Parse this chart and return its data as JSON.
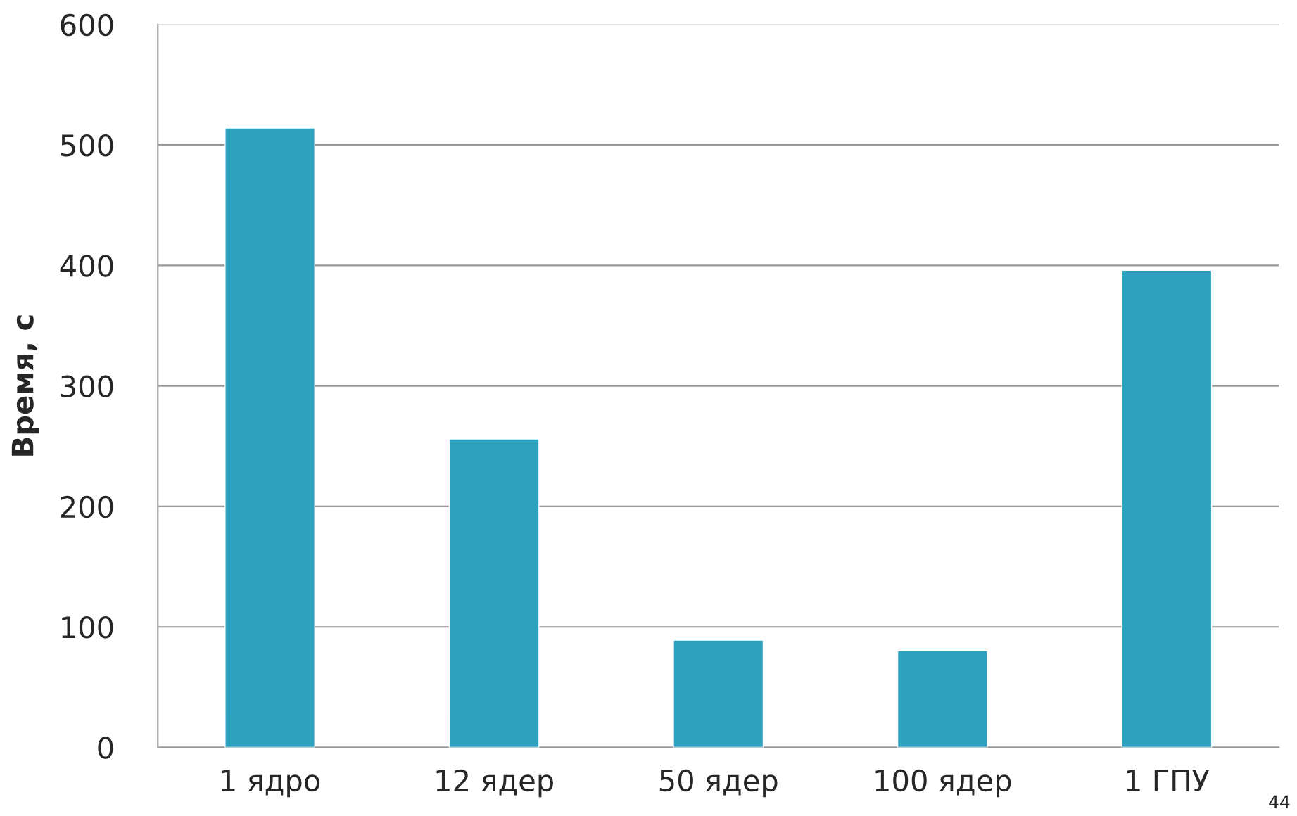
{
  "chart_data": {
    "type": "bar",
    "ylabel": "Время, с",
    "categories": [
      "1 ядро",
      "12 ядер",
      "50 ядер",
      "100 ядер",
      "1 ГПУ"
    ],
    "values": [
      514,
      256,
      89,
      80,
      396
    ],
    "color": "#2ea1bf",
    "ylim": [
      0,
      600
    ],
    "yticks": [
      0,
      100,
      200,
      300,
      400,
      500,
      600
    ],
    "grid": "y",
    "annotations": [
      "44"
    ]
  }
}
